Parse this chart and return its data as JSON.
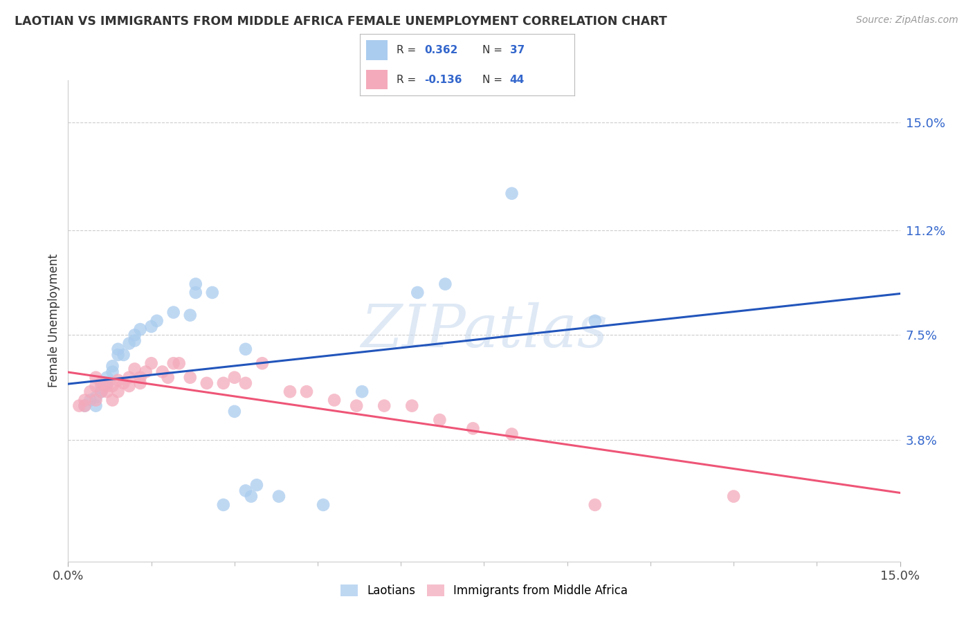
{
  "title": "LAOTIAN VS IMMIGRANTS FROM MIDDLE AFRICA FEMALE UNEMPLOYMENT CORRELATION CHART",
  "source": "Source: ZipAtlas.com",
  "ylabel": "Female Unemployment",
  "xlim": [
    0.0,
    0.15
  ],
  "ylim": [
    -0.005,
    0.165
  ],
  "ytick_labels": [
    "3.8%",
    "7.5%",
    "11.2%",
    "15.0%"
  ],
  "ytick_vals": [
    0.038,
    0.075,
    0.112,
    0.15
  ],
  "xtick_labels": [
    "0.0%",
    "15.0%"
  ],
  "xtick_vals": [
    0.0,
    0.15
  ],
  "R_laotian": 0.362,
  "N_laotian": 37,
  "R_midafrica": -0.136,
  "N_midafrica": 44,
  "laotian_color": "#aaccee",
  "midafrica_color": "#f4aabb",
  "laotian_line_color": "#2255bb",
  "midafrica_line_color": "#ee5577",
  "legend_label_laotian": "Laotians",
  "legend_label_midafrica": "Immigrants from Middle Africa",
  "watermark_text": "ZIPatlas",
  "laotian_x": [
    0.003,
    0.004,
    0.005,
    0.005,
    0.006,
    0.006,
    0.007,
    0.007,
    0.008,
    0.008,
    0.009,
    0.009,
    0.01,
    0.011,
    0.012,
    0.012,
    0.013,
    0.015,
    0.016,
    0.019,
    0.022,
    0.023,
    0.023,
    0.026,
    0.03,
    0.032,
    0.028,
    0.033,
    0.046,
    0.053,
    0.063,
    0.068,
    0.08,
    0.095,
    0.032,
    0.034,
    0.038
  ],
  "laotian_y": [
    0.05,
    0.052,
    0.05,
    0.053,
    0.055,
    0.057,
    0.06,
    0.058,
    0.062,
    0.064,
    0.068,
    0.07,
    0.068,
    0.072,
    0.075,
    0.073,
    0.077,
    0.078,
    0.08,
    0.083,
    0.082,
    0.09,
    0.093,
    0.09,
    0.048,
    0.07,
    0.015,
    0.018,
    0.015,
    0.055,
    0.09,
    0.093,
    0.125,
    0.08,
    0.02,
    0.022,
    0.018
  ],
  "midafrica_x": [
    0.002,
    0.003,
    0.003,
    0.004,
    0.005,
    0.005,
    0.005,
    0.006,
    0.006,
    0.007,
    0.007,
    0.008,
    0.008,
    0.009,
    0.009,
    0.01,
    0.011,
    0.011,
    0.012,
    0.013,
    0.013,
    0.014,
    0.015,
    0.017,
    0.018,
    0.019,
    0.02,
    0.022,
    0.025,
    0.028,
    0.03,
    0.032,
    0.035,
    0.04,
    0.043,
    0.048,
    0.052,
    0.057,
    0.062,
    0.067,
    0.073,
    0.08,
    0.095,
    0.12
  ],
  "midafrica_y": [
    0.05,
    0.05,
    0.052,
    0.055,
    0.052,
    0.057,
    0.06,
    0.055,
    0.058,
    0.055,
    0.057,
    0.052,
    0.057,
    0.055,
    0.059,
    0.058,
    0.057,
    0.06,
    0.063,
    0.058,
    0.06,
    0.062,
    0.065,
    0.062,
    0.06,
    0.065,
    0.065,
    0.06,
    0.058,
    0.058,
    0.06,
    0.058,
    0.065,
    0.055,
    0.055,
    0.052,
    0.05,
    0.05,
    0.05,
    0.045,
    0.042,
    0.04,
    0.015,
    0.018
  ],
  "background_color": "#ffffff",
  "grid_color": "#cccccc"
}
